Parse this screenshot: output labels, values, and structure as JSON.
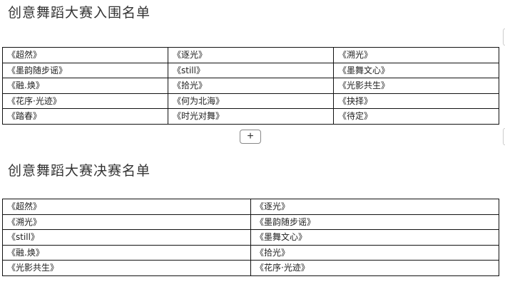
{
  "sections": [
    {
      "title": "创意舞蹈大赛入围名单",
      "rows": [
        [
          "《超然》",
          "《逐光》",
          "《溯光》"
        ],
        [
          "《墨韵随步谣》",
          "《still》",
          "《墨舞文心》"
        ],
        [
          "《融.焕》",
          "《拾光》",
          "《光影共生》"
        ],
        [
          "《花序·光迹》",
          "《何为北海》",
          "《抉择》"
        ],
        [
          "《踏春》",
          "《时光对舞》",
          "《待定》"
        ]
      ]
    },
    {
      "title": "创意舞蹈大赛决赛名单",
      "rows": [
        [
          "《超然》",
          "《逐光》"
        ],
        [
          "《溯光》",
          "《墨韵随步谣》"
        ],
        [
          "《still》",
          "《墨舞文心》"
        ],
        [
          "《融.焕》",
          "《拾光》"
        ],
        [
          "《光影共生》",
          "《花序·光迹》"
        ]
      ]
    }
  ],
  "add_button": {
    "label": "+",
    "icon": "plus-icon"
  }
}
